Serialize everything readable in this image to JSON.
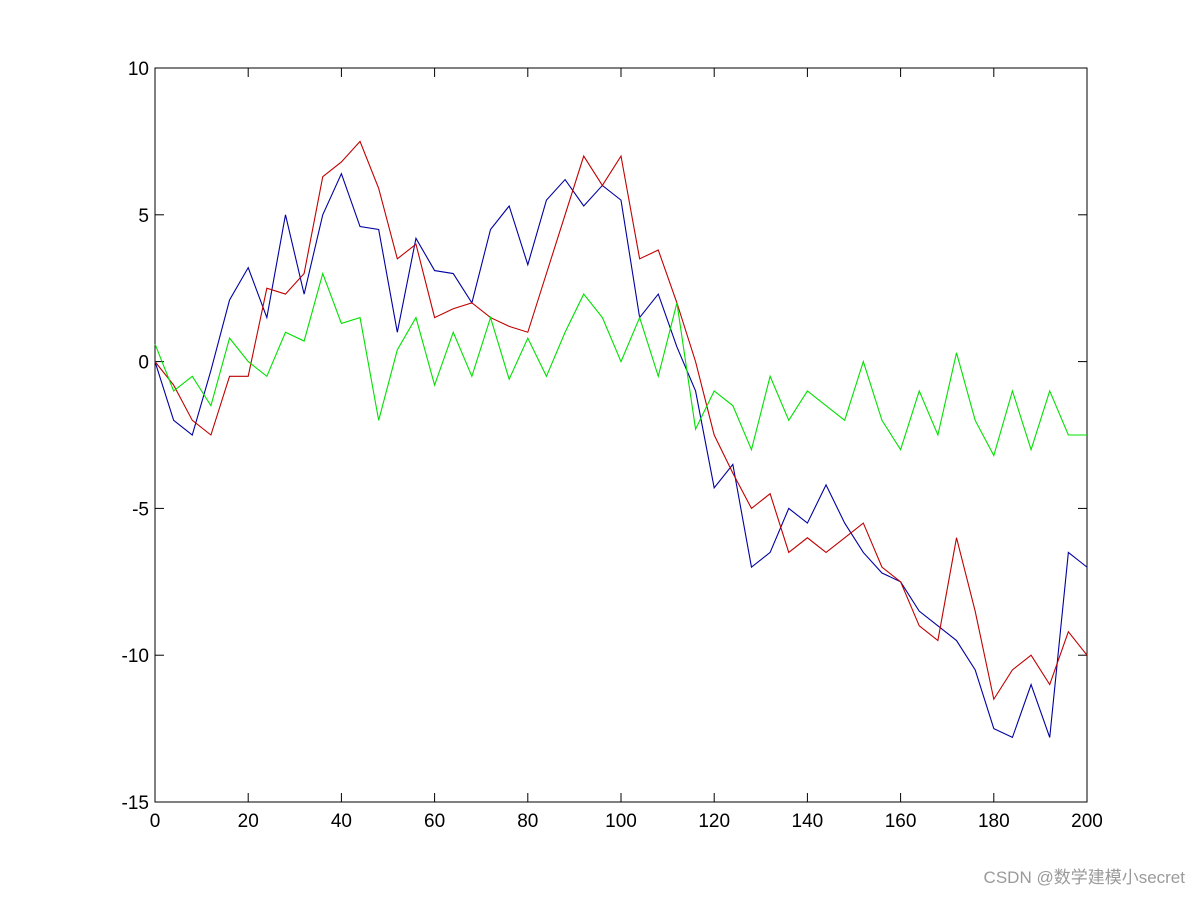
{
  "chart_data": {
    "type": "line",
    "x": [
      0,
      4,
      8,
      12,
      16,
      20,
      24,
      28,
      32,
      36,
      40,
      44,
      48,
      52,
      56,
      60,
      64,
      68,
      72,
      76,
      80,
      84,
      88,
      92,
      96,
      100,
      104,
      108,
      112,
      116,
      120,
      124,
      128,
      132,
      136,
      140,
      144,
      148,
      152,
      156,
      160,
      164,
      168,
      172,
      176,
      180,
      184,
      188,
      192,
      196,
      200
    ],
    "series": [
      {
        "color": "#0000a0",
        "values": [
          0,
          -2,
          -2.5,
          -0.3,
          2.1,
          3.2,
          1.5,
          5,
          2.3,
          5,
          6.4,
          4.6,
          4.5,
          1,
          4.2,
          3.1,
          3,
          2,
          4.5,
          5.3,
          3.3,
          5.5,
          6.2,
          5.3,
          6,
          5.5,
          1.5,
          2.3,
          0.5,
          -1,
          -4.3,
          -3.5,
          -7,
          -6.5,
          -5,
          -5.5,
          -4.2,
          -5.5,
          -6.5,
          -7.2,
          -7.5,
          -8.5,
          -9,
          -9.5,
          -10.5,
          -12.5,
          -12.8,
          -11,
          -12.8,
          -6.5,
          -7
        ]
      },
      {
        "color": "#c00000",
        "values": [
          0,
          -0.8,
          -2,
          -2.5,
          -0.5,
          -0.5,
          2.5,
          2.3,
          3,
          6.3,
          6.8,
          7.5,
          5.9,
          3.5,
          4,
          1.5,
          1.8,
          2,
          1.5,
          1.2,
          1,
          3,
          5,
          7,
          6,
          7,
          3.5,
          3.8,
          2,
          0,
          -2.5,
          -3.8,
          -5,
          -4.5,
          -6.5,
          -6,
          -6.5,
          -6,
          -5.5,
          -7,
          -7.5,
          -9,
          -9.5,
          -6,
          -8.5,
          -11.5,
          -10.5,
          -10,
          -11,
          -9.2,
          -10
        ]
      },
      {
        "color": "#00e000",
        "values": [
          0.6,
          -1,
          -0.5,
          -1.5,
          0.8,
          0,
          -0.5,
          1,
          0.7,
          3,
          1.3,
          1.5,
          -2,
          0.4,
          1.5,
          -0.8,
          1,
          -0.5,
          1.5,
          -0.6,
          0.8,
          -0.5,
          1,
          2.3,
          1.5,
          0,
          1.5,
          -0.5,
          2,
          -2.3,
          -1,
          -1.5,
          -3,
          -0.5,
          -2,
          -1,
          -1.5,
          -2,
          0,
          -2,
          -3,
          -1,
          -2.5,
          0.3,
          -2,
          -3.2,
          -1,
          -3,
          -1,
          -2.5,
          -2.5
        ]
      }
    ],
    "xlim": [
      0,
      200
    ],
    "ylim": [
      -15,
      10
    ],
    "xticks": [
      0,
      20,
      40,
      60,
      80,
      100,
      120,
      140,
      160,
      180,
      200
    ],
    "yticks": [
      -15,
      -10,
      -5,
      0,
      5,
      10
    ]
  },
  "watermark": "CSDN @数学建模小secret"
}
